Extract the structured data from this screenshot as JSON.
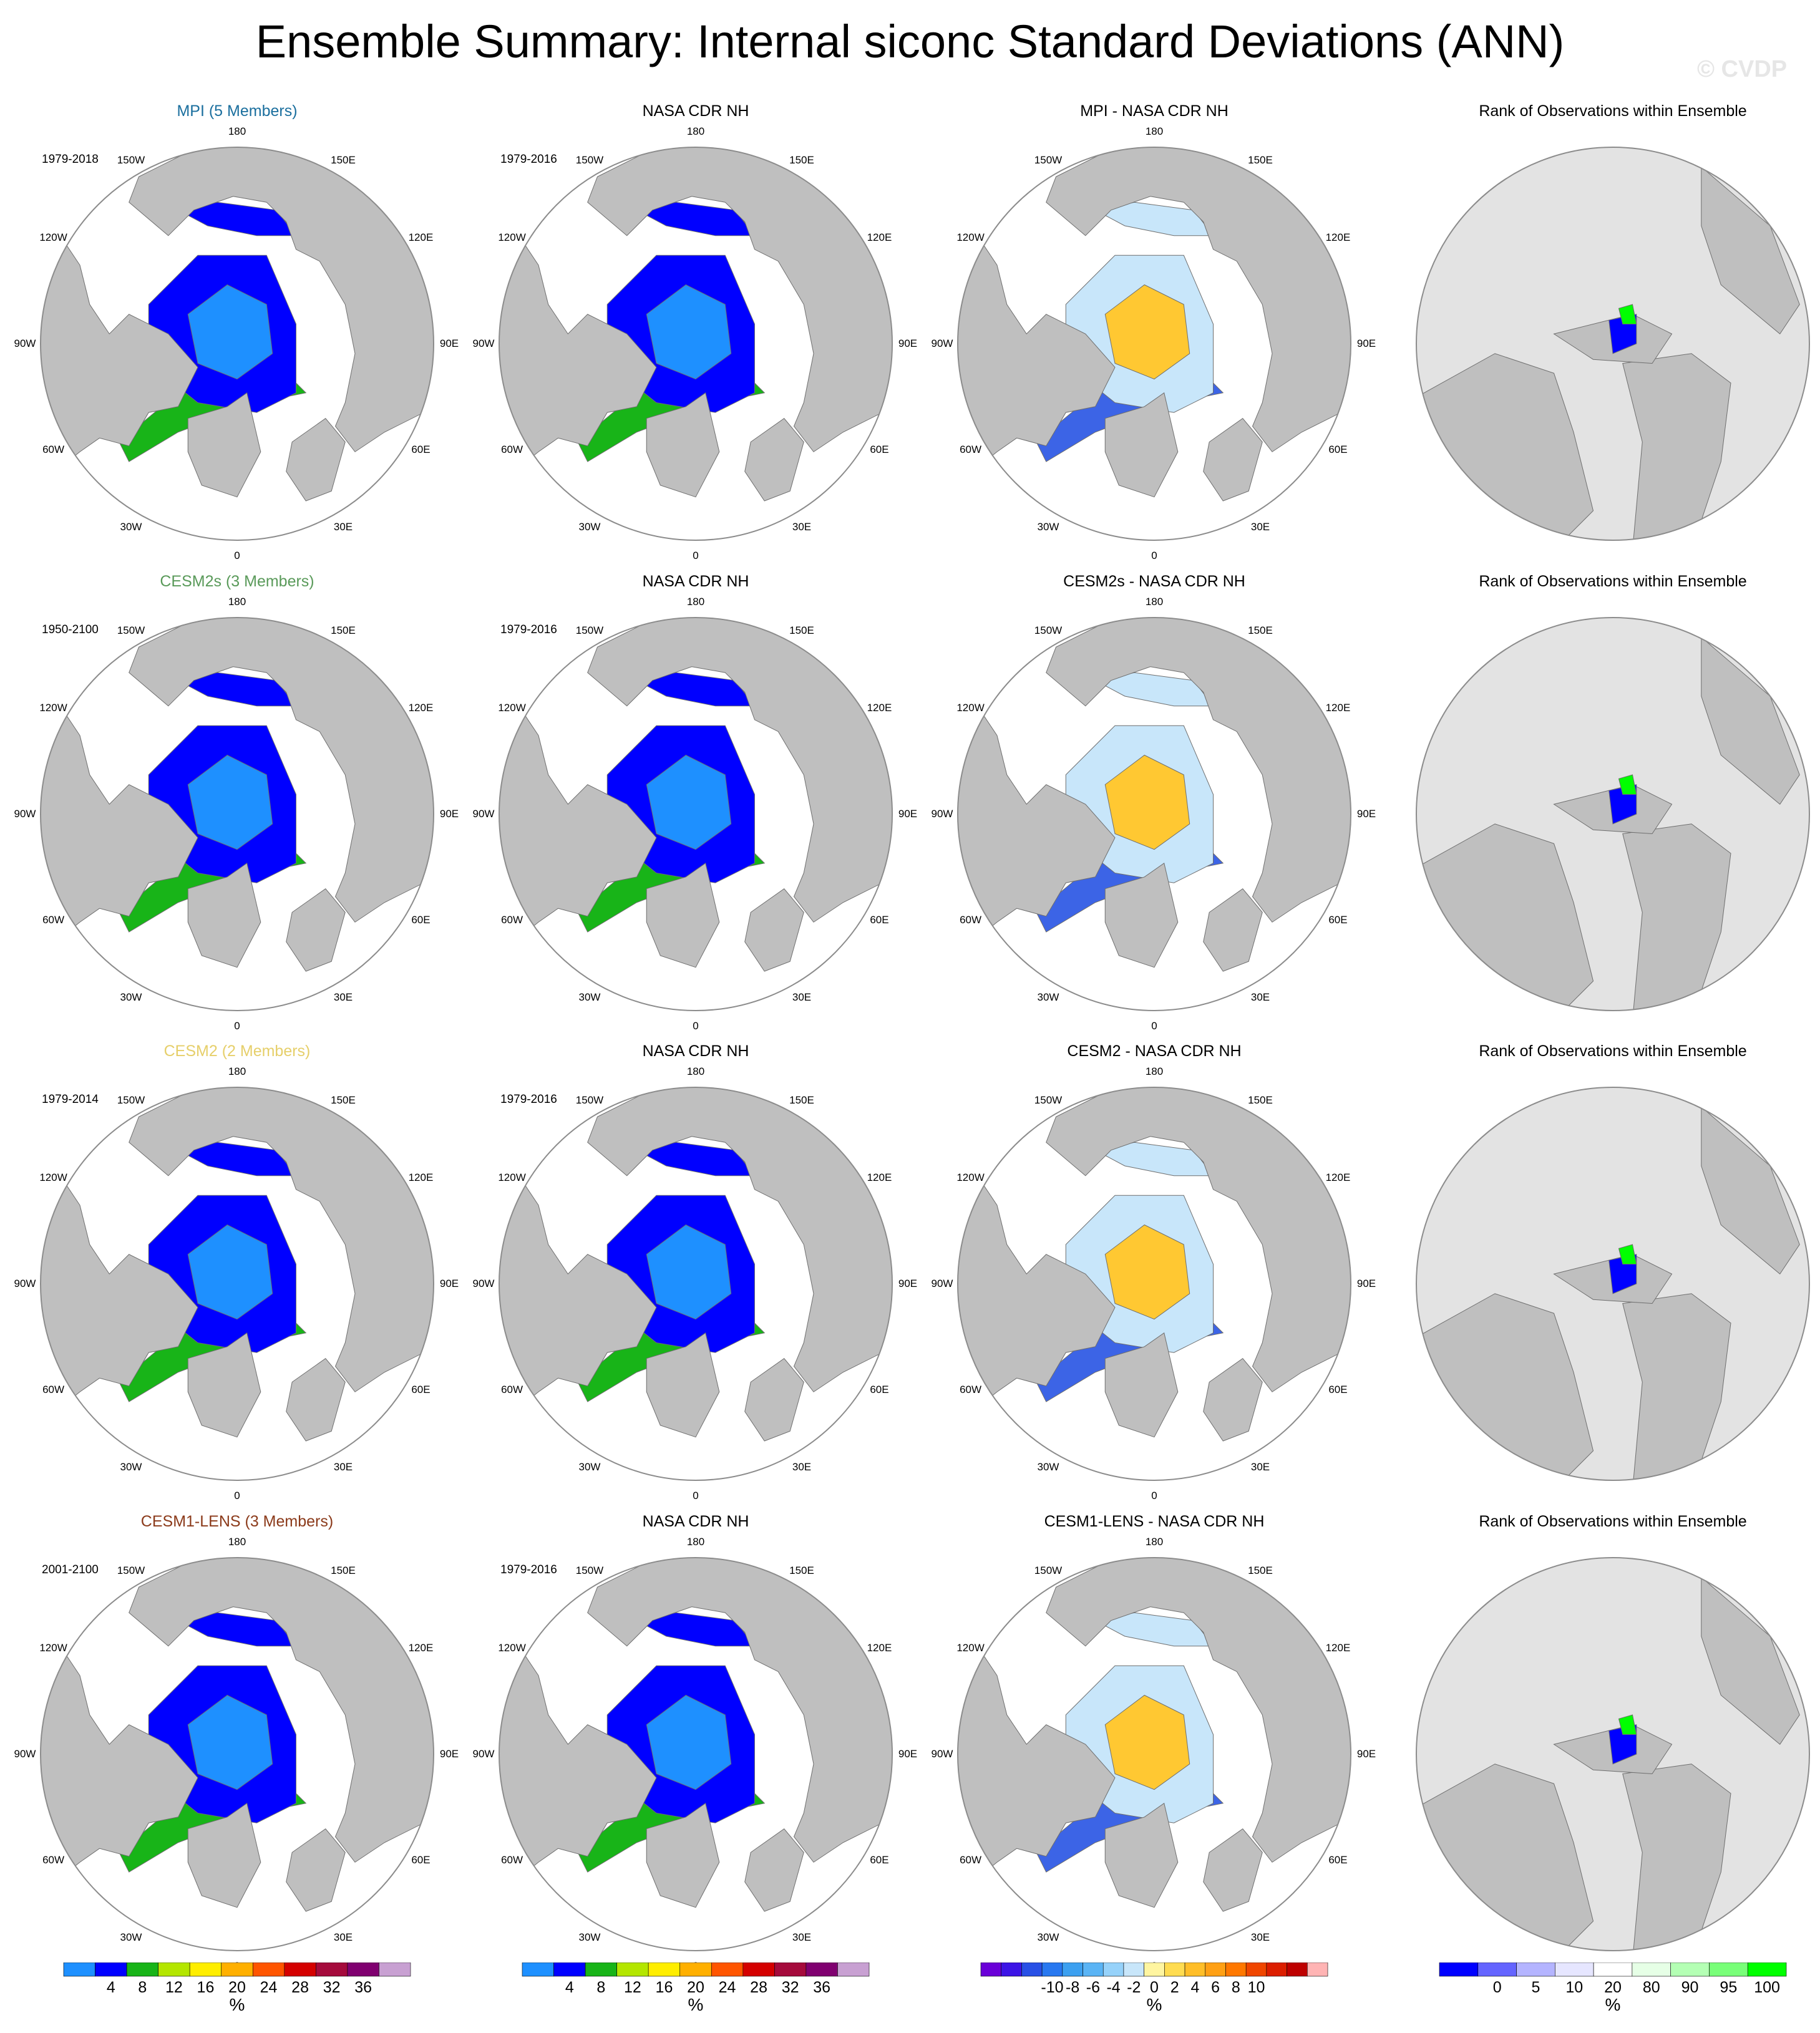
{
  "title": "Ensemble Summary: Internal siconc Standard Deviations (ANN)",
  "watermark": "© CVDP",
  "colors": {
    "land": "#bfbfbf",
    "coast": "#6e6e6e",
    "rank_background": "#e3e3e3",
    "title_mpi": "#1b6f9e",
    "title_cesm2s": "#5a9a5a",
    "title_cesm2": "#e6cf6a",
    "title_cesm1lens": "#8b3a1a"
  },
  "rows": [
    {
      "model_title": "MPI (5 Members)",
      "model_period": "1979-2018",
      "obs_title": "NASA CDR NH",
      "obs_period": "1979-2016",
      "diff_title": "MPI - NASA CDR NH",
      "rank_title": "Rank of Observations within Ensemble"
    },
    {
      "model_title": "CESM2s (3 Members)",
      "model_period": "1950-2100",
      "obs_title": "NASA CDR NH",
      "obs_period": "1979-2016",
      "diff_title": "CESM2s - NASA CDR NH",
      "rank_title": "Rank of Observations within Ensemble"
    },
    {
      "model_title": "CESM2 (2 Members)",
      "model_period": "1979-2014",
      "obs_title": "NASA CDR NH",
      "obs_period": "1979-2016",
      "diff_title": "CESM2 - NASA CDR NH",
      "rank_title": "Rank of Observations within Ensemble"
    },
    {
      "model_title": "CESM1-LENS (3 Members)",
      "model_period": "2001-2100",
      "obs_title": "NASA CDR NH",
      "obs_period": "1979-2016",
      "diff_title": "CESM1-LENS - NASA CDR NH",
      "rank_title": "Rank of Observations within Ensemble"
    }
  ],
  "longitude_labels": [
    "180",
    "150E",
    "120E",
    "90E",
    "60E",
    "30E",
    "0",
    "30W",
    "60W",
    "90W",
    "120W",
    "150W"
  ],
  "chart_data": {
    "type": "heatmap",
    "projection": "north polar stereographic",
    "variable": "siconc standard deviation",
    "colorbars": [
      {
        "unit": "%",
        "labels": [
          "4",
          "8",
          "12",
          "16",
          "20",
          "24",
          "28",
          "32",
          "36"
        ],
        "colors": [
          "#1e90ff",
          "#0000ff",
          "#18b418",
          "#b4e600",
          "#ffee00",
          "#ffb000",
          "#ff5500",
          "#d40000",
          "#a50a3c",
          "#800070",
          "#c8a0d2"
        ]
      },
      {
        "unit": "%",
        "labels": [
          "4",
          "8",
          "12",
          "16",
          "20",
          "24",
          "28",
          "32",
          "36"
        ],
        "colors": [
          "#1e90ff",
          "#0000ff",
          "#18b418",
          "#b4e600",
          "#ffee00",
          "#ffb000",
          "#ff5500",
          "#d40000",
          "#a50a3c",
          "#800070",
          "#c8a0d2"
        ]
      },
      {
        "unit": "%",
        "labels": [
          "-10",
          "-8",
          "-6",
          "-4",
          "-2",
          "0",
          "2",
          "4",
          "6",
          "8",
          "10"
        ],
        "colors": [
          "#6a00d8",
          "#3c14e6",
          "#2850e6",
          "#2878f0",
          "#3ca0f0",
          "#5ab4f5",
          "#96d2fa",
          "#c8e6fa",
          "#fff5a0",
          "#ffdc50",
          "#ffbe28",
          "#ffa014",
          "#ff7800",
          "#f04600",
          "#dc1e00",
          "#be0000",
          "#ffb4b4"
        ]
      },
      {
        "unit": "%",
        "labels": [
          "0",
          "5",
          "10",
          "20",
          "80",
          "90",
          "95",
          "100"
        ],
        "colors": [
          "#0000ff",
          "#6464ff",
          "#b4b4ff",
          "#e6e6ff",
          "#ffffff",
          "#e6ffe6",
          "#b4ffb4",
          "#78ff78",
          "#00ff00"
        ]
      }
    ]
  }
}
